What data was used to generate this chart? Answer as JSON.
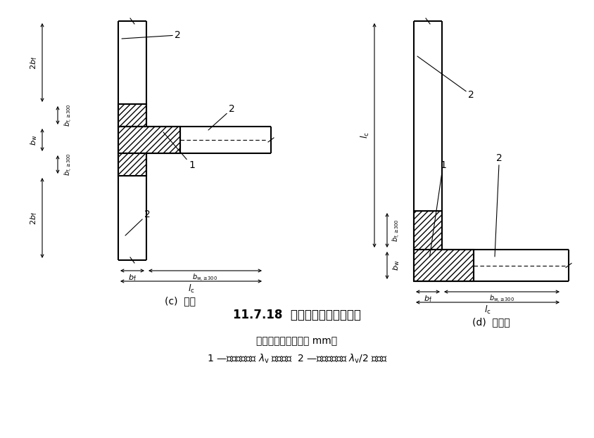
{
  "title": "11.7.18  剪力墙的约束边缘构件",
  "note_line1": "注：图中尺寸单位为 mm。",
  "note_line2": "1 —配箌特征值为 λ$_\\mathrm{v}$ 的区域；  2 —配箌特征值为 λ$_\\mathrm{v}$ /2 的区域",
  "label_c": "(c)  翼墙",
  "label_d": "(d)  转角墙",
  "bg_color": "#ffffff",
  "line_color": "#000000",
  "lw_main": 1.5,
  "lw_dim": 0.8,
  "lw_dash": 0.8
}
